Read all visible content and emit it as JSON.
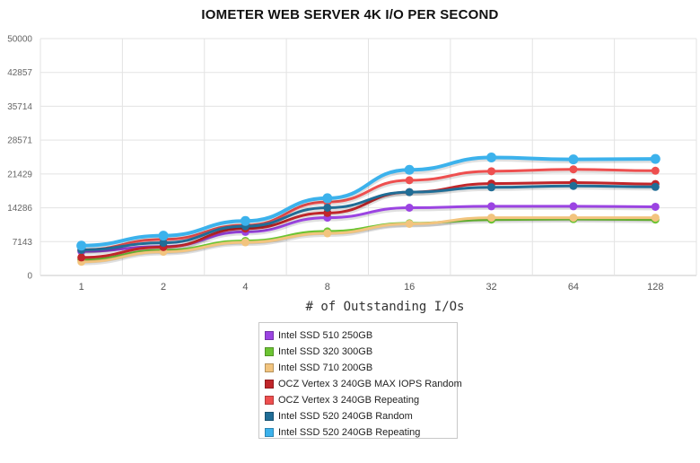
{
  "chart_data": {
    "type": "line",
    "title": "IOMETER WEB SERVER 4K I/O PER SECOND",
    "xlabel": "# of Outstanding I/Os",
    "ylabel": "",
    "categories": [
      "1",
      "2",
      "4",
      "8",
      "16",
      "32",
      "64",
      "128"
    ],
    "yticks": [
      "0",
      "7143",
      "14286",
      "21429",
      "28571",
      "35714",
      "42857",
      "50000"
    ],
    "ylim": [
      0,
      50000
    ],
    "grid": true,
    "legend_position": "bottom",
    "series": [
      {
        "name": "Intel SSD 510 250GB",
        "color": "#9b44e2",
        "values": [
          5100,
          6100,
          9200,
          12200,
          14300,
          14600,
          14600,
          14500
        ]
      },
      {
        "name": "Intel SSD 320 300GB",
        "color": "#6cc433",
        "values": [
          3300,
          5300,
          7300,
          9300,
          11000,
          11800,
          11900,
          11800
        ]
      },
      {
        "name": "Intel SSD 710 200GB",
        "color": "#f2c47e",
        "values": [
          2900,
          5000,
          7000,
          8900,
          10900,
          12200,
          12200,
          12200
        ]
      },
      {
        "name": "OCZ Vertex 3 240GB MAX IOPS Random",
        "color": "#c0262a",
        "values": [
          3800,
          6000,
          9900,
          13200,
          17600,
          19400,
          19600,
          19300
        ]
      },
      {
        "name": "OCZ Vertex 3 240GB Repeating",
        "color": "#ee4f4f",
        "values": [
          5400,
          7600,
          10600,
          15500,
          20100,
          22000,
          22400,
          22100
        ]
      },
      {
        "name": "Intel SSD 520 240GB Random",
        "color": "#206d96",
        "values": [
          5400,
          6900,
          10400,
          14300,
          17600,
          18600,
          18900,
          18700
        ]
      },
      {
        "name": "Intel SSD 520 240GB Repeating",
        "color": "#3cb2ec",
        "values": [
          6300,
          8400,
          11500,
          16300,
          22300,
          24900,
          24500,
          24600
        ]
      }
    ]
  }
}
